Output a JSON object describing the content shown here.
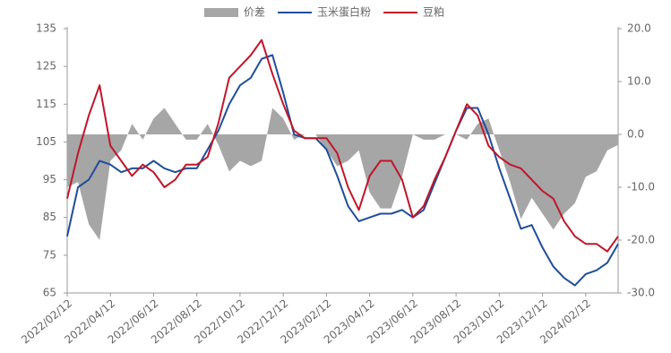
{
  "chart_data": {
    "type": "line",
    "legend": "top",
    "categories": [
      "2022/02/12",
      null,
      null,
      null,
      "2022/04/12",
      null,
      null,
      null,
      "2022/06/12",
      null,
      null,
      null,
      "2022/08/12",
      null,
      null,
      null,
      "2022/10/12",
      null,
      null,
      null,
      "2022/12/12",
      null,
      null,
      null,
      "2023/02/12",
      null,
      null,
      null,
      "2023/04/12",
      null,
      null,
      null,
      "2023/06/12",
      null,
      null,
      null,
      "2023/08/12",
      null,
      null,
      null,
      "2023/10/12",
      null,
      null,
      null,
      "2023/12/12",
      null,
      null,
      null,
      "2024/02/12",
      null,
      null,
      null
    ],
    "series": [
      {
        "name": "价差",
        "type": "area",
        "axis": "y2",
        "color": "#a6a6a6",
        "values": [
          -10,
          -9,
          -17,
          -20,
          -5,
          -3,
          2,
          -1,
          3,
          5,
          2,
          -1,
          -1,
          2,
          -2,
          -7,
          -5,
          -6,
          -5,
          5,
          3,
          -1,
          0,
          0,
          -3,
          -6,
          -5,
          -3,
          -11,
          -14,
          -14,
          -8,
          0,
          -1,
          -1,
          0,
          0,
          -1,
          2,
          3,
          -3,
          -9,
          -16,
          -12,
          -15,
          -18,
          -15,
          -13,
          -8,
          -7,
          -3,
          -2
        ]
      },
      {
        "name": "玉米蛋白粉",
        "color": "#1f4e99",
        "values": [
          80,
          93,
          95,
          100,
          99,
          97,
          98,
          98,
          100,
          98,
          97,
          98,
          98,
          103,
          108,
          115,
          120,
          122,
          127,
          128,
          118,
          107,
          106,
          106,
          103,
          96,
          88,
          84,
          85,
          86,
          86,
          87,
          85,
          87,
          94,
          101,
          108,
          114,
          114,
          107,
          98,
          90,
          82,
          83,
          77,
          72,
          69,
          67,
          70,
          71,
          73,
          78
        ]
      },
      {
        "name": "豆粕",
        "color": "#c0162b",
        "values": [
          90,
          102,
          112,
          120,
          104,
          100,
          96,
          99,
          97,
          93,
          95,
          99,
          99,
          101,
          110,
          122,
          125,
          128,
          132,
          123,
          115,
          108,
          106,
          106,
          106,
          102,
          93,
          87,
          96,
          100,
          100,
          95,
          85,
          88,
          95,
          101,
          108,
          115,
          112,
          104,
          101,
          99,
          98,
          95,
          92,
          90,
          84,
          80,
          78,
          78,
          76,
          80
        ]
      }
    ],
    "ylim": [
      65,
      135
    ],
    "yticks": [
      65,
      75,
      85,
      95,
      105,
      115,
      125,
      135
    ],
    "y2lim": [
      -30,
      20
    ],
    "y2ticks": [
      {
        "value": -30,
        "label": "-30.0"
      },
      {
        "value": -20,
        "label": "-20.0"
      },
      {
        "value": -10,
        "label": "-10.0"
      },
      {
        "value": 0,
        "label": "0.0"
      },
      {
        "value": 10,
        "label": "10.0"
      },
      {
        "value": 20,
        "label": "20.0"
      }
    ]
  }
}
